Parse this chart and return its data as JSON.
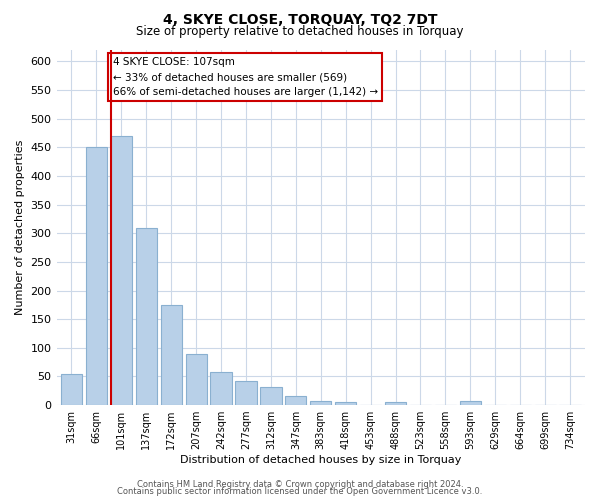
{
  "title": "4, SKYE CLOSE, TORQUAY, TQ2 7DT",
  "subtitle": "Size of property relative to detached houses in Torquay",
  "xlabel": "Distribution of detached houses by size in Torquay",
  "ylabel": "Number of detached properties",
  "bar_labels": [
    "31sqm",
    "66sqm",
    "101sqm",
    "137sqm",
    "172sqm",
    "207sqm",
    "242sqm",
    "277sqm",
    "312sqm",
    "347sqm",
    "383sqm",
    "418sqm",
    "453sqm",
    "488sqm",
    "523sqm",
    "558sqm",
    "593sqm",
    "629sqm",
    "664sqm",
    "699sqm",
    "734sqm"
  ],
  "bar_values": [
    55,
    450,
    470,
    310,
    175,
    90,
    58,
    42,
    32,
    15,
    8,
    6,
    1,
    5,
    1,
    0,
    8,
    0,
    1,
    0,
    1
  ],
  "bar_color": "#b8d0e8",
  "bar_edge_color": "#8ab0d0",
  "highlight_bar_index": 2,
  "highlight_color": "#cc0000",
  "annotation_text": "4 SKYE CLOSE: 107sqm\n← 33% of detached houses are smaller (569)\n66% of semi-detached houses are larger (1,142) →",
  "annotation_box_color": "#ffffff",
  "annotation_box_edge": "#cc0000",
  "ylim": [
    0,
    620
  ],
  "yticks": [
    0,
    50,
    100,
    150,
    200,
    250,
    300,
    350,
    400,
    450,
    500,
    550,
    600
  ],
  "footer_line1": "Contains HM Land Registry data © Crown copyright and database right 2024.",
  "footer_line2": "Contains public sector information licensed under the Open Government Licence v3.0.",
  "background_color": "#ffffff",
  "grid_color": "#ccd8e8"
}
